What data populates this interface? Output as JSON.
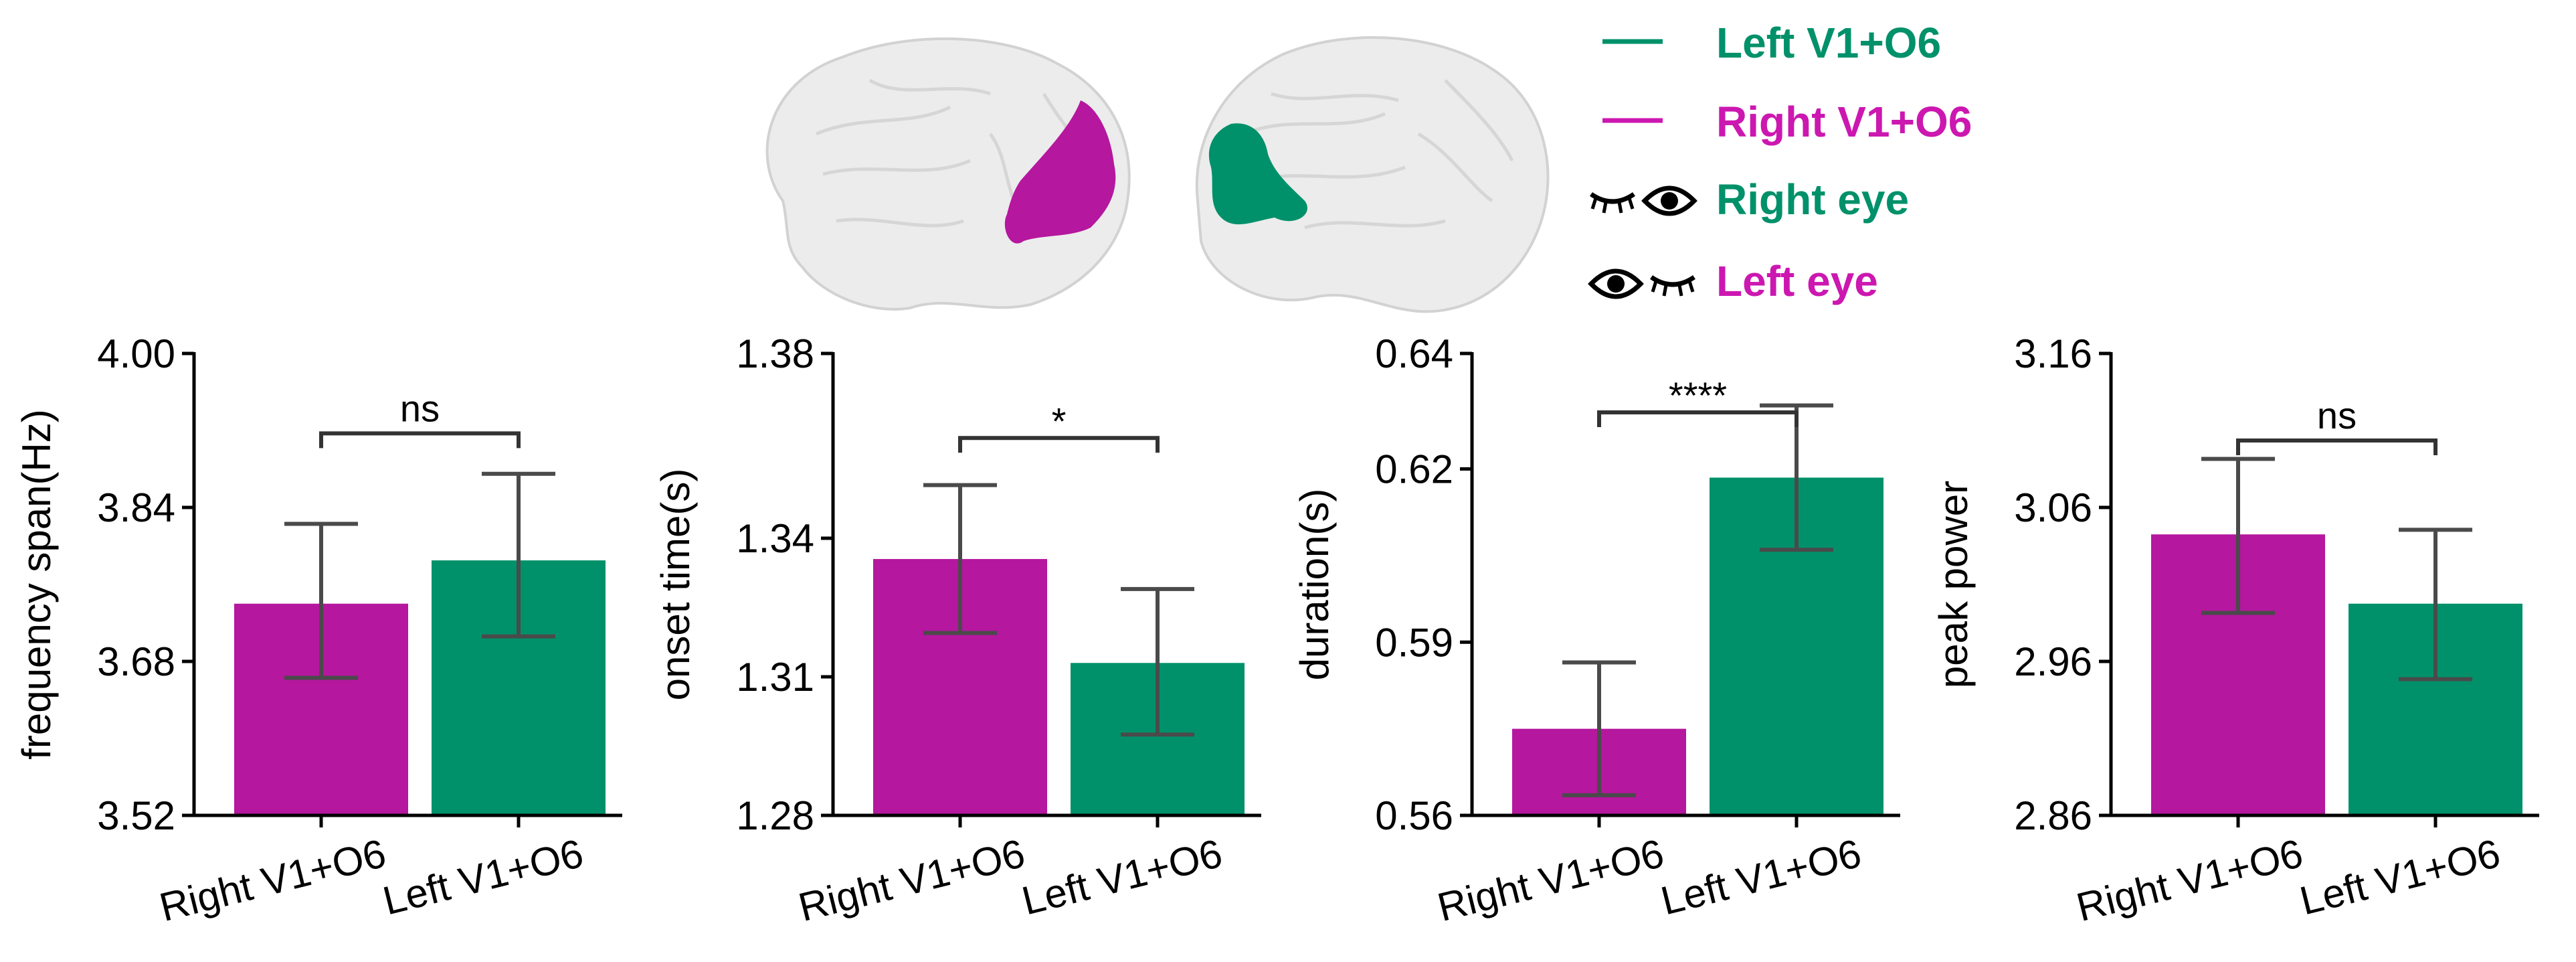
{
  "colors": {
    "right": "#b5179e",
    "left": "#00916a",
    "legend_right": "#cc17b0",
    "error_bar": "#4a4a4a",
    "axis": "#000000"
  },
  "legend": {
    "items": [
      {
        "marker": "line",
        "label": "Left V1+O6",
        "color_key": "left"
      },
      {
        "marker": "line",
        "label": "Right V1+O6",
        "color_key": "legend_right"
      },
      {
        "marker": "eyes-closed-open",
        "label": "Right eye",
        "color_key": "left"
      },
      {
        "marker": "eyes-open-closed",
        "label": "Left eye",
        "color_key": "legend_right"
      }
    ]
  },
  "brain_images": [
    {
      "name": "left-hemisphere-brain",
      "highlight": "Right V1+O6",
      "highlight_color_key": "right"
    },
    {
      "name": "right-hemisphere-brain",
      "highlight": "Left V1+O6",
      "highlight_color_key": "left"
    }
  ],
  "chart_data": [
    {
      "type": "bar",
      "categories": [
        "Right V1+O6",
        "Left V1+O6"
      ],
      "values": [
        3.74,
        3.785
      ],
      "errors_upper": [
        3.823,
        3.875
      ],
      "errors_lower": [
        3.663,
        3.706
      ],
      "ylabel": "frequency span(Hz)",
      "ylim": [
        3.52,
        4.0
      ],
      "yticks": [
        "3.52",
        "3.68",
        "3.84",
        "4.00"
      ],
      "yticks_values": [
        3.52,
        3.68,
        3.84,
        4.0
      ],
      "significance": "ns",
      "bracket_y": 3.917
    },
    {
      "type": "bar",
      "categories": [
        "Right V1+O6",
        "Left V1+O6"
      ],
      "values": [
        1.3355,
        1.313
      ],
      "errors_upper": [
        1.3515,
        1.329
      ],
      "errors_lower": [
        1.3195,
        1.2975
      ],
      "ylabel": "onset time(s)",
      "ylim": [
        1.28,
        1.38
      ],
      "yticks": [
        "1.28",
        "1.31",
        "1.34",
        "1.38"
      ],
      "yticks_values": [
        1.28,
        1.31,
        1.34,
        1.38
      ],
      "significance": "*",
      "bracket_y": 1.3617
    },
    {
      "type": "bar",
      "categories": [
        "Right V1+O6",
        "Left V1+O6"
      ],
      "values": [
        0.575,
        0.6185
      ],
      "errors_upper": [
        0.5865,
        0.631
      ],
      "errors_lower": [
        0.5635,
        0.606
      ],
      "ylabel": "duration(s)",
      "ylim": [
        0.56,
        0.64
      ],
      "yticks": [
        "0.56",
        "0.59",
        "0.62",
        "0.64"
      ],
      "yticks_values": [
        0.56,
        0.59,
        0.62,
        0.64
      ],
      "significance": "****",
      "bracket_y": 0.6298
    },
    {
      "type": "bar",
      "categories": [
        "Right V1+O6",
        "Left V1+O6"
      ],
      "values": [
        3.0425,
        2.9975
      ],
      "errors_upper": [
        3.0915,
        3.0455
      ],
      "errors_lower": [
        2.9915,
        2.9485
      ],
      "ylabel": "peak power",
      "ylim": [
        2.86,
        3.16
      ],
      "yticks": [
        "2.86",
        "2.96",
        "3.06",
        "3.16"
      ],
      "yticks_values": [
        2.86,
        2.96,
        3.06,
        3.16
      ],
      "significance": "ns",
      "bracket_y": 3.1035
    }
  ]
}
